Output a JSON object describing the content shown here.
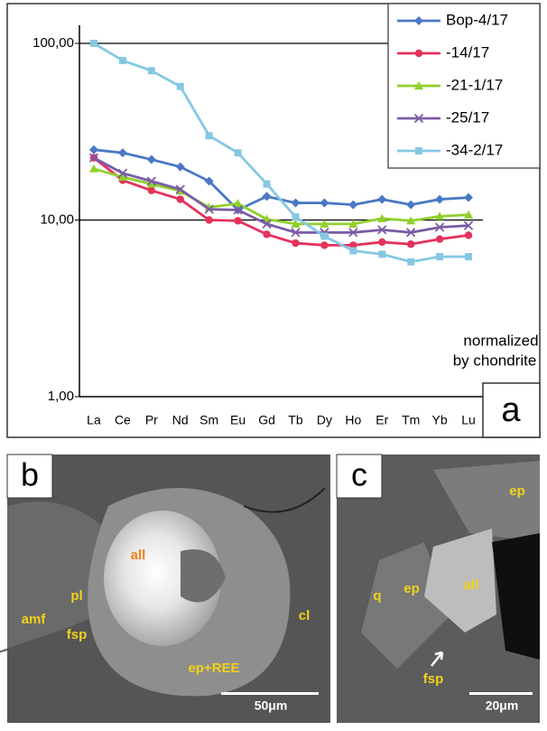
{
  "chart_data": {
    "type": "line",
    "categories": [
      "La",
      "Ce",
      "Pr",
      "Nd",
      "Sm",
      "Eu",
      "Gd",
      "Tb",
      "Dy",
      "Ho",
      "Er",
      "Tm",
      "Yb",
      "Lu"
    ],
    "series": [
      {
        "name": "Bop-4/17",
        "color": "#4a78c4",
        "marker": "diamond",
        "values": [
          25,
          24,
          22,
          20,
          16.6,
          11.4,
          13.6,
          12.5,
          12.5,
          12.2,
          13.1,
          12.2,
          13.1,
          13.4
        ]
      },
      {
        "name": "-14/17",
        "color": "#e5325c",
        "marker": "circle",
        "values": [
          22.5,
          16.8,
          14.7,
          13.1,
          10,
          9.9,
          8.3,
          7.4,
          7.2,
          7.2,
          7.5,
          7.3,
          7.8,
          8.2
        ]
      },
      {
        "name": "-21-1/17",
        "color": "#8fd02a",
        "marker": "triangle",
        "values": [
          19.5,
          17.5,
          16,
          14.6,
          11.8,
          12.4,
          10.1,
          9.5,
          9.5,
          9.5,
          10.2,
          9.9,
          10.5,
          10.7
        ]
      },
      {
        "name": "-25/17",
        "color": "#7b5ba6",
        "marker": "x",
        "values": [
          22.5,
          18.4,
          16.6,
          14.9,
          11.5,
          11.4,
          9.5,
          8.5,
          8.5,
          8.5,
          8.8,
          8.5,
          9.1,
          9.3
        ]
      },
      {
        "name": "-34-2/17",
        "color": "#86c8e3",
        "marker": "square",
        "values": [
          100,
          80,
          70,
          57,
          30,
          24,
          16,
          10.4,
          8.1,
          6.7,
          6.4,
          5.8,
          6.2,
          6.2
        ]
      }
    ],
    "ylim": [
      1,
      100
    ],
    "log_scale": true,
    "grid": true,
    "yticks": [
      {
        "value": 1,
        "label": "1,00"
      },
      {
        "value": 10,
        "label": "10,00"
      },
      {
        "value": 100,
        "label": "100,00"
      }
    ],
    "annotation": [
      "normalized",
      "by chondrite"
    ],
    "panel_label": "a",
    "legend": "upper right"
  },
  "panels": [
    {
      "panel_label": "b",
      "labels": [
        "all",
        "pl",
        "amf",
        "fsp",
        "cl",
        "ep+REE"
      ],
      "scale": "50μm"
    },
    {
      "panel_label": "c",
      "labels": [
        "ep",
        "q",
        "ep",
        "all",
        "fsp"
      ],
      "scale": "20μm"
    }
  ]
}
